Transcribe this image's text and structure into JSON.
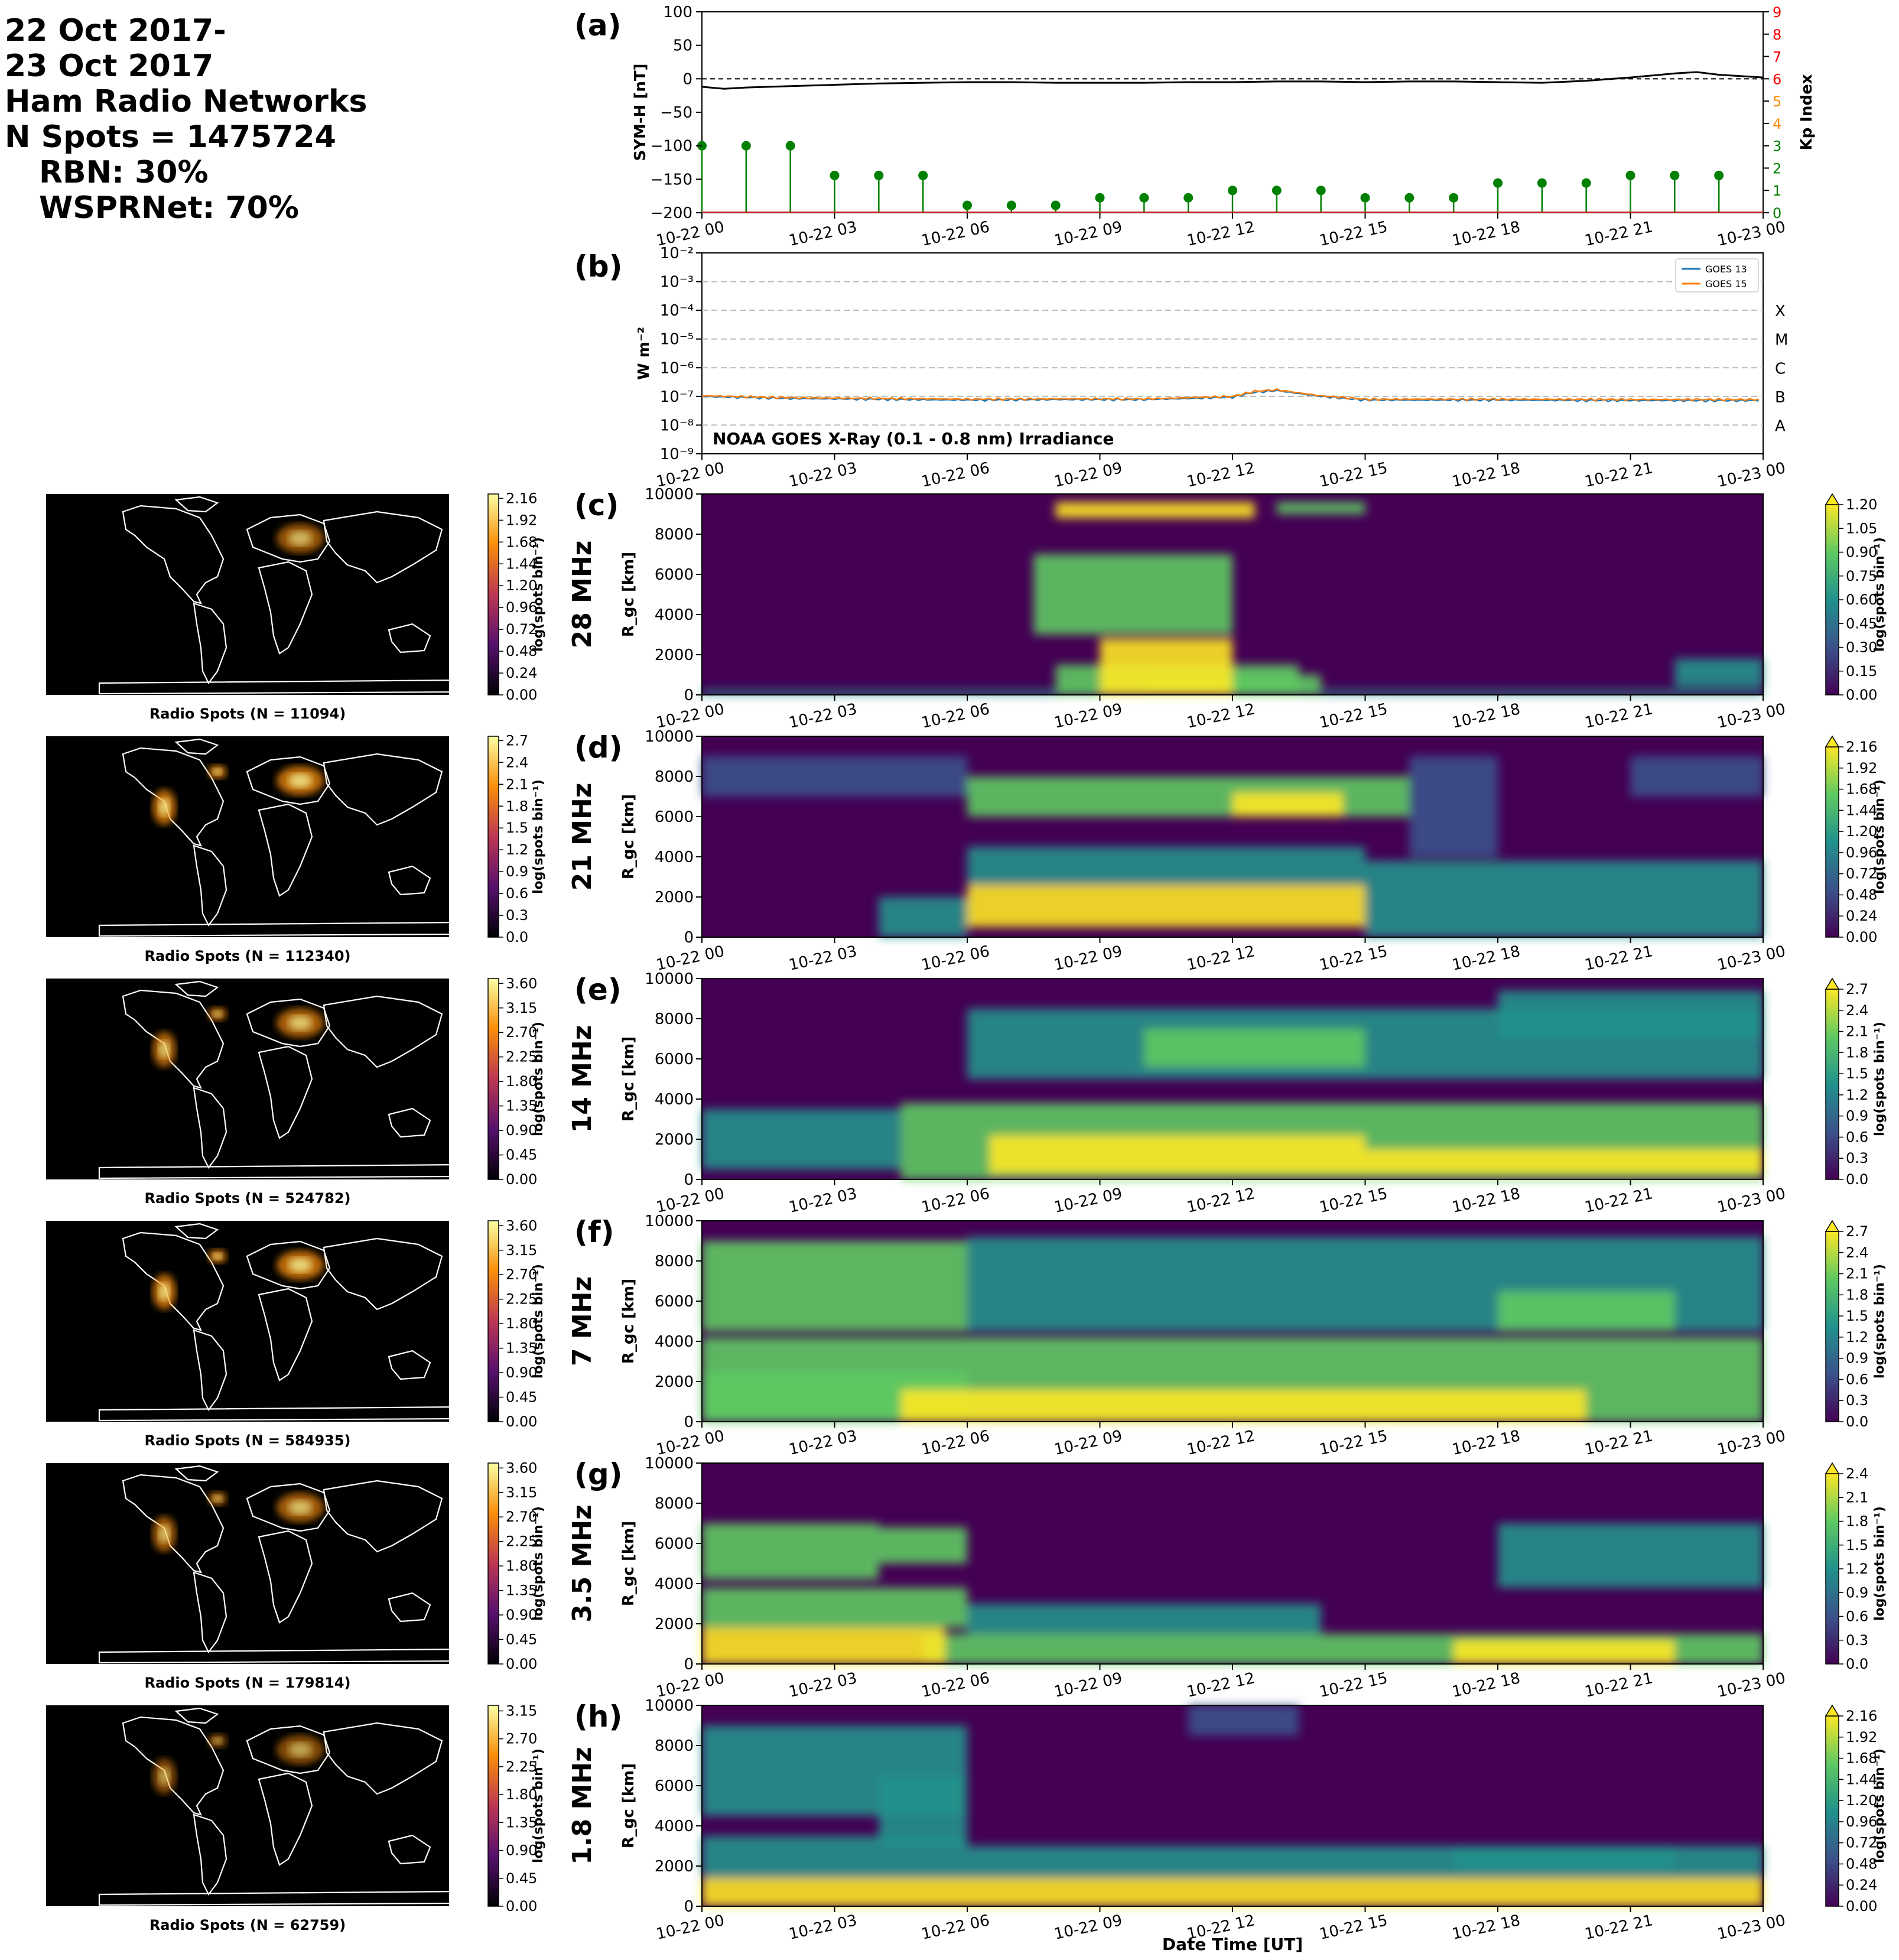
{
  "header": {
    "line1": "22 Oct 2017-",
    "line2": "23 Oct 2017",
    "line3": "Ham Radio Networks",
    "line4": "N Spots = 1475724",
    "line5": "RBN: 30%",
    "line6": "WSPRNet: 70%"
  },
  "time_ticks": [
    "10-22 00",
    "10-22 03",
    "10-22 06",
    "10-22 09",
    "10-22 12",
    "10-22 15",
    "10-22 18",
    "10-22 21",
    "10-23 00"
  ],
  "xlabel": "Date Time [UT]",
  "colors": {
    "symh": "#000000",
    "kp": "#008000",
    "kp_red": "#ff0000",
    "kp_orange": "#ff8c00",
    "goes13": "#1f77b4",
    "goes15": "#ff7f0e",
    "map_bg": "#000000",
    "coast": "#ffffff"
  },
  "chart_data": [
    {
      "panel": "(a)",
      "type": "line",
      "ylabel": "SYM-H [nT]",
      "ylim": [
        -200,
        100
      ],
      "yticks": [
        "100",
        "50",
        "0",
        "−50",
        "−100",
        "−150",
        "−200"
      ],
      "y2label": "Kp Index",
      "y2lim": [
        0,
        9
      ],
      "y2ticks": [
        "0",
        "1",
        "2",
        "3",
        "4",
        "5",
        "6",
        "7",
        "8",
        "9"
      ],
      "series": [
        {
          "x": [
            0,
            0.5,
            1,
            2,
            3,
            4,
            5,
            6,
            7,
            8,
            9,
            10,
            11,
            12,
            13,
            14,
            15,
            16,
            17,
            18,
            19,
            20,
            21,
            22,
            22.5,
            23,
            24
          ],
          "values": [
            -12,
            -15,
            -13,
            -11,
            -9,
            -7,
            -6,
            -5,
            -5,
            -6,
            -6,
            -6,
            -5,
            -5,
            -4,
            -4,
            -5,
            -4,
            -4,
            -5,
            -6,
            -3,
            2,
            8,
            10,
            6,
            2
          ]
        },
        {
          "x": [
            0,
            1,
            2,
            3,
            4,
            5,
            6,
            7,
            8,
            9,
            10,
            11,
            12,
            13,
            14,
            15,
            16,
            17,
            18,
            19,
            20,
            21,
            22,
            23
          ],
          "values": [
            3,
            3,
            3,
            1.67,
            1.67,
            1.67,
            0.33,
            0.33,
            0.33,
            0.67,
            0.67,
            0.67,
            1,
            1,
            1,
            0.67,
            0.67,
            0.67,
            1.33,
            1.33,
            1.33,
            1.67,
            1.67,
            1.67
          ]
        }
      ],
      "grid": false
    },
    {
      "panel": "(b)",
      "type": "line",
      "title": "NOAA GOES X-Ray (0.1 - 0.8 nm) Irradiance",
      "ylabel": "W m⁻²",
      "yscale": "log",
      "ylim": [
        1e-09,
        0.01
      ],
      "yticks": [
        "10⁻⁹",
        "10⁻⁸",
        "10⁻⁷",
        "10⁻⁶",
        "10⁻⁵",
        "10⁻⁴",
        "10⁻³",
        "10⁻²"
      ],
      "flare_classes": [
        "A",
        "B",
        "C",
        "M",
        "X"
      ],
      "legend": "top-right",
      "series": [
        {
          "name": "GOES 13",
          "x": [
            0,
            2,
            4,
            6,
            8,
            10,
            11,
            12,
            12.5,
            13,
            14,
            15,
            18,
            21,
            24
          ],
          "values": [
            1e-07,
            8.5e-08,
            8e-08,
            7.5e-08,
            7.8e-08,
            7.8e-08,
            8.5e-08,
            9.5e-08,
            1.4e-07,
            1.6e-07,
            1e-07,
            7.5e-08,
            7.5e-08,
            7.2e-08,
            7.2e-08
          ]
        },
        {
          "name": "GOES 15",
          "x": [
            0,
            2,
            4,
            6,
            8,
            10,
            11,
            12,
            12.5,
            13,
            14,
            15,
            18,
            21,
            24
          ],
          "values": [
            1.05e-07,
            9e-08,
            8.5e-08,
            8e-08,
            8.2e-08,
            8.2e-08,
            9e-08,
            1e-07,
            1.5e-07,
            1.7e-07,
            1.05e-07,
            8e-08,
            8e-08,
            7.8e-08,
            7.8e-08
          ]
        }
      ],
      "grid": true
    },
    {
      "panel": "(c)",
      "type": "heatmap",
      "band": "28 MHz",
      "ylabel": "R_gc [km]",
      "ylim": [
        0,
        10000
      ],
      "yticks": [
        "0",
        "2000",
        "4000",
        "6000",
        "8000",
        "10000"
      ],
      "colorbar_ticks": [
        "0.00",
        "0.15",
        "0.30",
        "0.45",
        "0.60",
        "0.75",
        "0.90",
        "1.05",
        "1.20"
      ],
      "colorbar_label": "log(spots bin⁻¹)",
      "map_title": "Radio Spots (N = 11094)",
      "map_colorbar_ticks": [
        "0.00",
        "0.24",
        "0.48",
        "0.72",
        "0.96",
        "1.20",
        "1.44",
        "1.68",
        "1.92",
        "2.16"
      ]
    },
    {
      "panel": "(d)",
      "type": "heatmap",
      "band": "21 MHz",
      "ylabel": "R_gc [km]",
      "ylim": [
        0,
        10000
      ],
      "yticks": [
        "0",
        "2000",
        "4000",
        "6000",
        "8000",
        "10000"
      ],
      "colorbar_ticks": [
        "0.00",
        "0.24",
        "0.48",
        "0.72",
        "0.96",
        "1.20",
        "1.44",
        "1.68",
        "1.92",
        "2.16"
      ],
      "colorbar_label": "log(spots bin⁻¹)",
      "map_title": "Radio Spots (N = 112340)",
      "map_colorbar_ticks": [
        "0.0",
        "0.3",
        "0.6",
        "0.9",
        "1.2",
        "1.5",
        "1.8",
        "2.1",
        "2.4",
        "2.7"
      ]
    },
    {
      "panel": "(e)",
      "type": "heatmap",
      "band": "14 MHz",
      "ylabel": "R_gc [km]",
      "ylim": [
        0,
        10000
      ],
      "yticks": [
        "0",
        "2000",
        "4000",
        "6000",
        "8000",
        "10000"
      ],
      "colorbar_ticks": [
        "0.0",
        "0.3",
        "0.6",
        "0.9",
        "1.2",
        "1.5",
        "1.8",
        "2.1",
        "2.4",
        "2.7"
      ],
      "colorbar_label": "log(spots bin⁻¹)",
      "map_title": "Radio Spots (N = 524782)",
      "map_colorbar_ticks": [
        "0.00",
        "0.45",
        "0.90",
        "1.35",
        "1.80",
        "2.25",
        "2.70",
        "3.15",
        "3.60"
      ]
    },
    {
      "panel": "(f)",
      "type": "heatmap",
      "band": "7 MHz",
      "ylabel": "R_gc [km]",
      "ylim": [
        0,
        10000
      ],
      "yticks": [
        "0",
        "2000",
        "4000",
        "6000",
        "8000",
        "10000"
      ],
      "colorbar_ticks": [
        "0.0",
        "0.3",
        "0.6",
        "0.9",
        "1.2",
        "1.5",
        "1.8",
        "2.1",
        "2.4",
        "2.7"
      ],
      "colorbar_label": "log(spots bin⁻¹)",
      "map_title": "Radio Spots (N = 584935)",
      "map_colorbar_ticks": [
        "0.00",
        "0.45",
        "0.90",
        "1.35",
        "1.80",
        "2.25",
        "2.70",
        "3.15",
        "3.60"
      ]
    },
    {
      "panel": "(g)",
      "type": "heatmap",
      "band": "3.5 MHz",
      "ylabel": "R_gc [km]",
      "ylim": [
        0,
        10000
      ],
      "yticks": [
        "0",
        "2000",
        "4000",
        "6000",
        "8000",
        "10000"
      ],
      "colorbar_ticks": [
        "0.0",
        "0.3",
        "0.6",
        "0.9",
        "1.2",
        "1.5",
        "1.8",
        "2.1",
        "2.4"
      ],
      "colorbar_label": "log(spots bin⁻¹)",
      "map_title": "Radio Spots (N = 179814)",
      "map_colorbar_ticks": [
        "0.00",
        "0.45",
        "0.90",
        "1.35",
        "1.80",
        "2.25",
        "2.70",
        "3.15",
        "3.60"
      ]
    },
    {
      "panel": "(h)",
      "type": "heatmap",
      "band": "1.8 MHz",
      "ylabel": "R_gc [km]",
      "ylim": [
        0,
        10000
      ],
      "yticks": [
        "0",
        "2000",
        "4000",
        "6000",
        "8000",
        "10000"
      ],
      "colorbar_ticks": [
        "0.00",
        "0.24",
        "0.48",
        "0.72",
        "0.96",
        "1.20",
        "1.44",
        "1.68",
        "1.92",
        "2.16"
      ],
      "colorbar_label": "log(spots bin⁻¹)",
      "map_title": "Radio Spots (N = 62759)",
      "map_colorbar_ticks": [
        "0.00",
        "0.45",
        "0.90",
        "1.35",
        "1.80",
        "2.25",
        "2.70",
        "3.15"
      ]
    }
  ]
}
